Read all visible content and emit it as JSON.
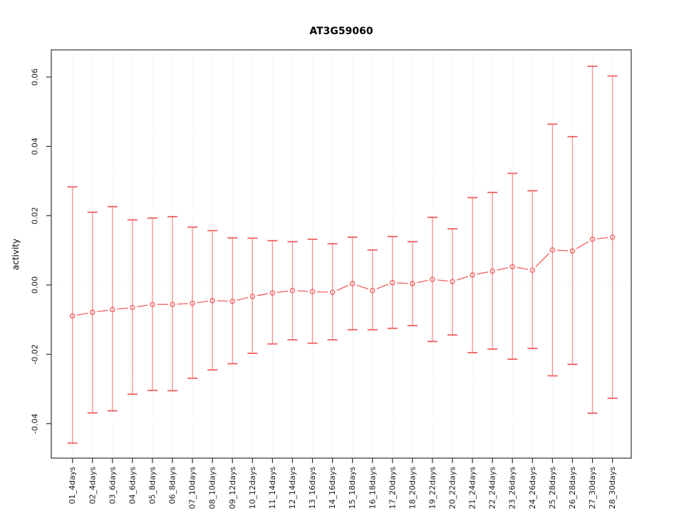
{
  "title": "AT3G59060",
  "colors": {
    "series": "#f15f5f",
    "series_light": "#f78f8f",
    "grid": "#dcdcdc",
    "box": "#333333",
    "text": "#1a1a1a"
  },
  "chart_data": {
    "type": "line",
    "subtype": "points_with_error_bars",
    "title": "AT3G59060",
    "xlabel": "",
    "ylabel": "activity",
    "ylim": [
      -0.05,
      0.068
    ],
    "yticks": [
      0.06,
      0.04,
      0.02,
      0.0,
      -0.02,
      -0.04
    ],
    "ytick_labels": [
      "0.06",
      "0.04",
      "0.02",
      "0.00",
      "-0.02",
      "-0.04"
    ],
    "grid": "vertical dotted gridline at each category; dotted horizontal line at y=0",
    "legend": "none",
    "categories": [
      "01_4days",
      "02_4days",
      "03_6days",
      "04_6days",
      "05_8days",
      "06_8days",
      "07_10days",
      "08_10days",
      "09_12days",
      "10_12days",
      "11_14days",
      "12_14days",
      "13_16days",
      "14_16days",
      "15_18days",
      "16_18days",
      "17_20days",
      "18_20days",
      "19_22days",
      "20_22days",
      "21_24days",
      "22_24days",
      "23_26days",
      "24_26days",
      "25_28days",
      "26_28days",
      "27_30days",
      "28_30days"
    ],
    "series": [
      {
        "name": "activity",
        "values": [
          -0.0089,
          -0.0079,
          -0.0071,
          -0.0065,
          -0.0056,
          -0.0056,
          -0.0053,
          -0.0045,
          -0.0047,
          -0.0033,
          -0.0023,
          -0.0016,
          -0.0019,
          -0.0021,
          0.0004,
          -0.0016,
          0.0007,
          0.0004,
          0.0016,
          0.001,
          0.0029,
          0.004,
          0.0053,
          0.0043,
          0.0101,
          0.0098,
          0.0132,
          0.0138
        ],
        "upper": [
          0.0283,
          0.021,
          0.0226,
          0.0188,
          0.0193,
          0.0197,
          0.0167,
          0.0157,
          0.0136,
          0.0135,
          0.0128,
          0.0125,
          0.0132,
          0.0119,
          0.0138,
          0.0101,
          0.014,
          0.0125,
          0.0195,
          0.0162,
          0.0252,
          0.0267,
          0.0322,
          0.0272,
          0.0464,
          0.0428,
          0.0631,
          0.0603
        ],
        "lower": [
          -0.0456,
          -0.0369,
          -0.0363,
          -0.0315,
          -0.0304,
          -0.0305,
          -0.0269,
          -0.0245,
          -0.0227,
          -0.0197,
          -0.017,
          -0.0158,
          -0.0168,
          -0.0158,
          -0.0129,
          -0.0129,
          -0.0125,
          -0.0117,
          -0.0163,
          -0.0144,
          -0.0195,
          -0.0185,
          -0.0214,
          -0.0183,
          -0.0262,
          -0.0229,
          -0.037,
          -0.0327
        ]
      }
    ]
  }
}
